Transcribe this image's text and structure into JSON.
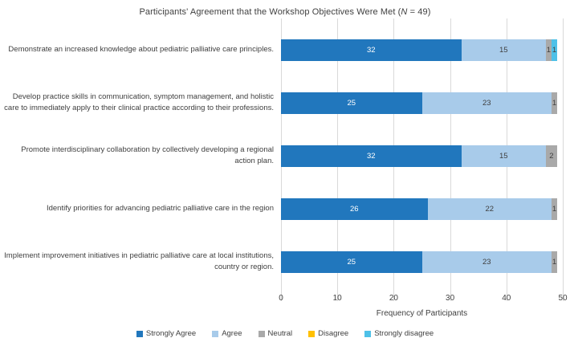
{
  "title": {
    "prefix": "Participants' Agreement that the Workshop Objectives Were Met (",
    "n_symbol": "N",
    "suffix": " = 49)"
  },
  "chart_data": {
    "type": "bar",
    "orientation": "horizontal_stacked",
    "title": "Participants' Agreement that the Workshop Objectives Were Met (N = 49)",
    "xlabel": "Frequency of Participants",
    "ylabel": "",
    "xlim": [
      0,
      50
    ],
    "xticks": [
      0,
      10,
      20,
      30,
      40,
      50
    ],
    "grid": true,
    "legend_position": "bottom",
    "categories": [
      "Demonstrate an increased knowledge about pediatric palliative care principles.",
      "Develop practice skills in communication, symptom management, and holistic care to immediately apply to their clinical practice according to their professions.",
      "Promote interdisciplinary collaboration by collectively developing a regional action plan.",
      "Identify priorities for advancing pediatric palliative care in the region",
      "Implement improvement initiatives in pediatric palliative care at local institutions, country or region."
    ],
    "series": [
      {
        "name": "Strongly Agree",
        "color": "#2177bd",
        "label_color": "#ffffff",
        "values": [
          32,
          25,
          32,
          26,
          25
        ]
      },
      {
        "name": "Agree",
        "color": "#a8cbea",
        "label_color": "#3f3f3f",
        "values": [
          15,
          23,
          15,
          22,
          23
        ]
      },
      {
        "name": "Neutral",
        "color": "#a9a9a9",
        "label_color": "#3f3f3f",
        "values": [
          1,
          1,
          2,
          1,
          1
        ]
      },
      {
        "name": "Disagree",
        "color": "#ffc000",
        "label_color": "#3f3f3f",
        "values": [
          0,
          0,
          0,
          0,
          0
        ]
      },
      {
        "name": "Strongly disagree",
        "color": "#4ec1e8",
        "label_color": "#3f3f3f",
        "values": [
          1,
          0,
          0,
          0,
          0
        ]
      }
    ]
  },
  "colors": {
    "gridline": "#d9d9d9",
    "text": "#3f3f3f"
  }
}
